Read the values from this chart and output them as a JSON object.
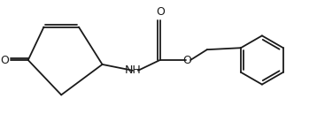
{
  "figsize": [
    3.58,
    1.37
  ],
  "dpi": 100,
  "bg_color": "#ffffff",
  "line_color": "#1a1a1a",
  "line_width": 1.3,
  "font_size": 8.5,
  "xlim": [
    0,
    358
  ],
  "ylim": [
    0,
    137
  ]
}
